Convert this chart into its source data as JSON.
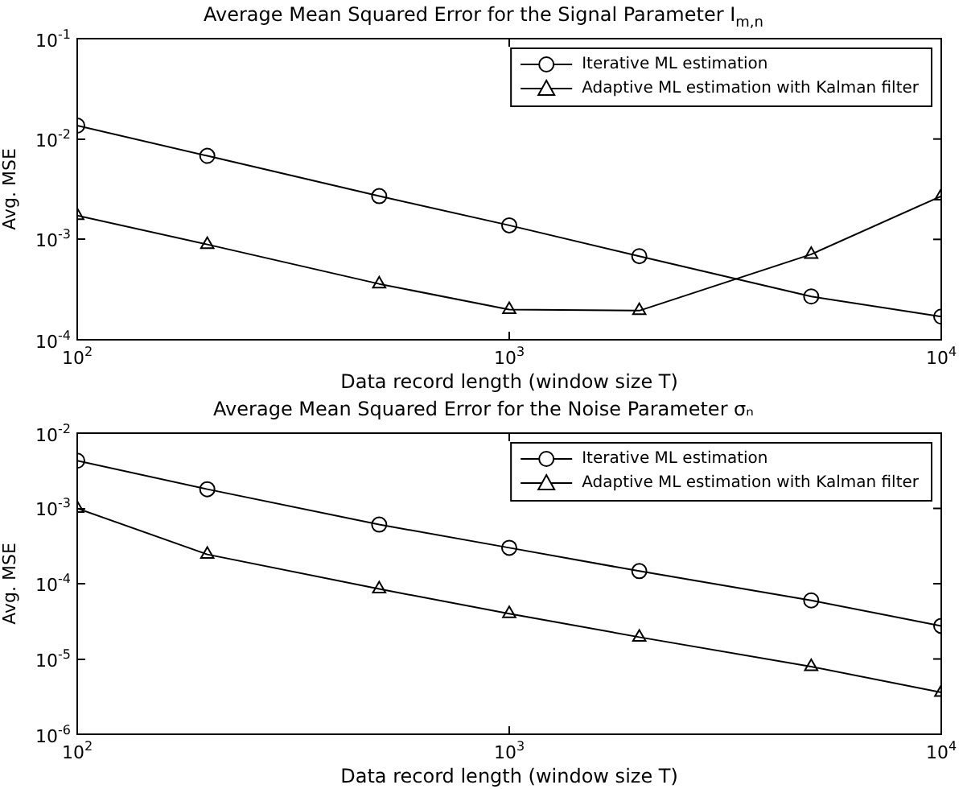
{
  "chart_data": [
    {
      "type": "line",
      "title": "Average Mean Squared Error for the Signal Parameter I$_{m,n}$",
      "xlabel": "Data record length (window size T)",
      "ylabel": "Avg. MSE",
      "log": "xy",
      "grid": false,
      "legend": "top right",
      "xlim": [
        100,
        10000
      ],
      "xticks": [
        {
          "value": 100,
          "label": "10$^{2}$"
        },
        {
          "value": 1000,
          "label": "10$^{3}$"
        },
        {
          "value": 10000,
          "label": "10$^{4}$"
        }
      ],
      "ylim": [
        0.0001,
        0.1
      ],
      "yticks": [
        {
          "value": 0.0001,
          "label": "10$^{-4}$"
        },
        {
          "value": 0.001,
          "label": "10$^{-3}$"
        },
        {
          "value": 0.01,
          "label": "10$^{-2}$"
        },
        {
          "value": 0.1,
          "label": "10$^{-1}$"
        }
      ],
      "x": [
        100,
        200,
        500,
        1000,
        2000,
        5000,
        10000
      ],
      "series": [
        {
          "name": "Iterative ML estimation",
          "color": "#000000",
          "marker": "circle",
          "values": [
            0.0136,
            0.0068,
            0.0027,
            0.00138,
            0.00068,
            0.00027,
            0.00017
          ]
        },
        {
          "name": "Adaptive ML estimation with Kalman filter",
          "color": "#000000",
          "marker": "triangle",
          "values": [
            0.00173,
            0.00089,
            0.00036,
            0.0002,
            0.000195,
            0.00071,
            0.0027
          ]
        }
      ]
    },
    {
      "type": "line",
      "title": "Average Mean Squared Error for the Noise Parameter σₙ",
      "xlabel": "Data record length (window size T)",
      "ylabel": "Avg. MSE",
      "log": "xy",
      "grid": false,
      "legend": "top right",
      "xlim": [
        100,
        10000
      ],
      "xticks": [
        {
          "value": 100,
          "label": "10$^{2}$"
        },
        {
          "value": 1000,
          "label": "10$^{3}$"
        },
        {
          "value": 10000,
          "label": "10$^{4}$"
        }
      ],
      "ylim": [
        1e-06,
        0.01
      ],
      "yticks": [
        {
          "value": 1e-06,
          "label": "10$^{-6}$"
        },
        {
          "value": 1e-05,
          "label": "10$^{-5}$"
        },
        {
          "value": 0.0001,
          "label": "10$^{-4}$"
        },
        {
          "value": 0.001,
          "label": "10$^{-3}$"
        },
        {
          "value": 0.01,
          "label": "10$^{-2}$"
        }
      ],
      "x": [
        100,
        200,
        500,
        1000,
        2000,
        5000,
        10000
      ],
      "series": [
        {
          "name": "Iterative ML estimation",
          "color": "#000000",
          "marker": "circle",
          "values": [
            0.0043,
            0.0018,
            0.00061,
            0.0003,
            0.000147,
            6e-05,
            2.75e-05
          ]
        },
        {
          "name": "Adaptive ML estimation with Kalman filter",
          "color": "#000000",
          "marker": "triangle",
          "values": [
            0.001,
            0.000245,
            8.5e-05,
            4e-05,
            1.95e-05,
            7.9e-06,
            3.6e-06
          ]
        }
      ]
    }
  ]
}
